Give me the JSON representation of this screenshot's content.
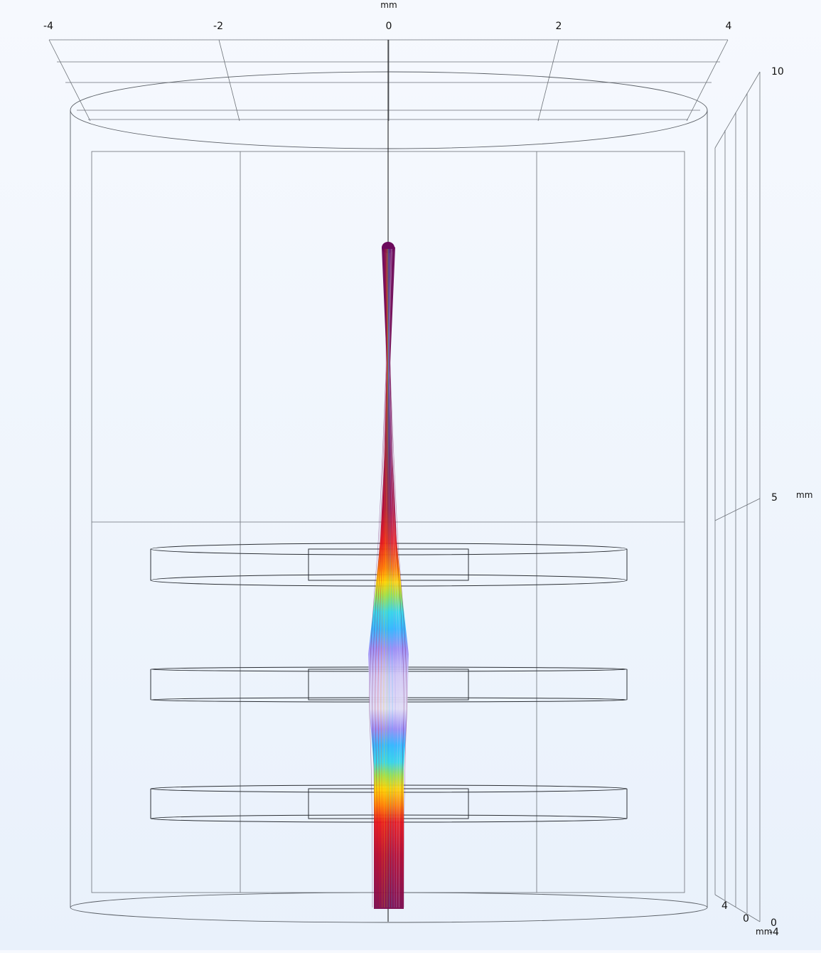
{
  "axes": {
    "top": {
      "unit": "mm",
      "ticks": [
        "-4",
        "-2",
        "0",
        "2",
        "4"
      ]
    },
    "right": {
      "unit": "mm",
      "ticks": [
        "10",
        "5",
        "0"
      ]
    },
    "depth": {
      "unit": "mm",
      "ticks": [
        "4",
        "0",
        "-4"
      ]
    }
  },
  "beam": {
    "colormap": [
      "#6b0a5c",
      "#7a0a4e",
      "#b5082e",
      "#e8161a",
      "#ff7a00",
      "#ffd300",
      "#9be04a",
      "#33d6e8",
      "#30b6ff",
      "#9a8cf5",
      "#d2c8f5",
      "#e0dcf5"
    ]
  }
}
